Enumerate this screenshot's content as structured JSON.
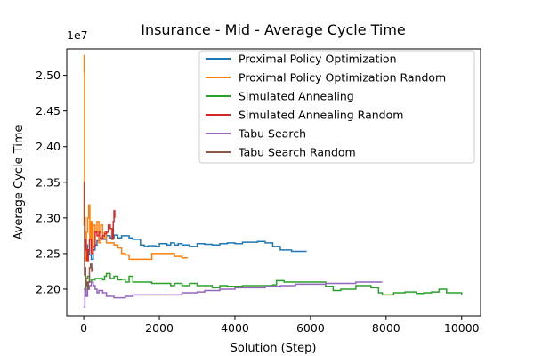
{
  "chart_data": {
    "type": "line",
    "title": "Insurance - Mid - Average Cycle Time",
    "xlabel": "Solution (Step)",
    "ylabel": "Average Cycle Time",
    "y_offset_label": "1e7",
    "xlim": [
      -450,
      10500
    ],
    "ylim": [
      2.1625,
      2.537
    ],
    "x_ticks": [
      0,
      2000,
      4000,
      6000,
      8000,
      10000
    ],
    "y_ticks": [
      2.2,
      2.25,
      2.3,
      2.35,
      2.4,
      2.45,
      2.5
    ],
    "y_tick_labels": [
      "2.20",
      "2.25",
      "2.30",
      "2.35",
      "2.40",
      "2.45",
      "2.50"
    ],
    "grid": false,
    "legend_position": "top-right",
    "series": [
      {
        "name": "Proximal Policy Optimization",
        "color": "#1f77b4",
        "step": true,
        "points": [
          [
            0,
            2.27
          ],
          [
            50,
            2.262
          ],
          [
            100,
            2.255
          ],
          [
            150,
            2.248
          ],
          [
            200,
            2.242
          ],
          [
            250,
            2.255
          ],
          [
            300,
            2.262
          ],
          [
            350,
            2.268
          ],
          [
            400,
            2.272
          ],
          [
            500,
            2.27
          ],
          [
            600,
            2.275
          ],
          [
            700,
            2.272
          ],
          [
            800,
            2.276
          ],
          [
            900,
            2.272
          ],
          [
            1000,
            2.275
          ],
          [
            1200,
            2.272
          ],
          [
            1300,
            2.27
          ],
          [
            1500,
            2.262
          ],
          [
            1600,
            2.26
          ],
          [
            1700,
            2.261
          ],
          [
            1900,
            2.26
          ],
          [
            2000,
            2.264
          ],
          [
            2200,
            2.262
          ],
          [
            2300,
            2.265
          ],
          [
            2400,
            2.262
          ],
          [
            2500,
            2.264
          ],
          [
            2600,
            2.262
          ],
          [
            2800,
            2.26
          ],
          [
            3000,
            2.264
          ],
          [
            3200,
            2.263
          ],
          [
            3400,
            2.262
          ],
          [
            3600,
            2.264
          ],
          [
            3800,
            2.265
          ],
          [
            4000,
            2.264
          ],
          [
            4200,
            2.266
          ],
          [
            4400,
            2.266
          ],
          [
            4600,
            2.267
          ],
          [
            4800,
            2.265
          ],
          [
            5000,
            2.26
          ],
          [
            5200,
            2.255
          ],
          [
            5500,
            2.253
          ],
          [
            5900,
            2.253
          ]
        ]
      },
      {
        "name": "Proximal Policy Optimization Random",
        "color": "#ff7f0e",
        "step": true,
        "points": [
          [
            0,
            2.528
          ],
          [
            10,
            2.505
          ],
          [
            20,
            2.3
          ],
          [
            40,
            2.24
          ],
          [
            70,
            2.28
          ],
          [
            100,
            2.3
          ],
          [
            130,
            2.318
          ],
          [
            160,
            2.27
          ],
          [
            190,
            2.295
          ],
          [
            220,
            2.25
          ],
          [
            250,
            2.29
          ],
          [
            300,
            2.28
          ],
          [
            350,
            2.295
          ],
          [
            400,
            2.265
          ],
          [
            450,
            2.29
          ],
          [
            500,
            2.272
          ],
          [
            550,
            2.28
          ],
          [
            600,
            2.265
          ],
          [
            700,
            2.265
          ],
          [
            800,
            2.262
          ],
          [
            900,
            2.258
          ],
          [
            1000,
            2.25
          ],
          [
            1100,
            2.248
          ],
          [
            1200,
            2.242
          ],
          [
            1400,
            2.242
          ],
          [
            1600,
            2.242
          ],
          [
            1800,
            2.25
          ],
          [
            2000,
            2.25
          ],
          [
            2200,
            2.25
          ],
          [
            2400,
            2.246
          ],
          [
            2600,
            2.244
          ],
          [
            2750,
            2.244
          ]
        ]
      },
      {
        "name": "Simulated Annealing",
        "color": "#2ca02c",
        "step": true,
        "points": [
          [
            0,
            2.2
          ],
          [
            50,
            2.215
          ],
          [
            100,
            2.218
          ],
          [
            150,
            2.21
          ],
          [
            200,
            2.213
          ],
          [
            300,
            2.215
          ],
          [
            400,
            2.215
          ],
          [
            500,
            2.213
          ],
          [
            550,
            2.218
          ],
          [
            600,
            2.222
          ],
          [
            700,
            2.215
          ],
          [
            800,
            2.218
          ],
          [
            900,
            2.213
          ],
          [
            1000,
            2.214
          ],
          [
            1100,
            2.21
          ],
          [
            1200,
            2.218
          ],
          [
            1300,
            2.21
          ],
          [
            1500,
            2.21
          ],
          [
            1800,
            2.208
          ],
          [
            2000,
            2.208
          ],
          [
            2200,
            2.208
          ],
          [
            2300,
            2.205
          ],
          [
            2400,
            2.208
          ],
          [
            2600,
            2.205
          ],
          [
            2800,
            2.208
          ],
          [
            3000,
            2.205
          ],
          [
            3200,
            2.205
          ],
          [
            3400,
            2.202
          ],
          [
            3600,
            2.205
          ],
          [
            3800,
            2.204
          ],
          [
            4000,
            2.204
          ],
          [
            4200,
            2.205
          ],
          [
            4600,
            2.205
          ],
          [
            4800,
            2.205
          ],
          [
            5000,
            2.206
          ],
          [
            5100,
            2.212
          ],
          [
            5300,
            2.21
          ],
          [
            6000,
            2.21
          ],
          [
            6200,
            2.21
          ],
          [
            6400,
            2.204
          ],
          [
            6600,
            2.198
          ],
          [
            6800,
            2.2
          ],
          [
            7000,
            2.2
          ],
          [
            7200,
            2.205
          ],
          [
            7400,
            2.205
          ],
          [
            7600,
            2.202
          ],
          [
            7800,
            2.195
          ],
          [
            7900,
            2.192
          ],
          [
            8200,
            2.195
          ],
          [
            8500,
            2.196
          ],
          [
            8800,
            2.194
          ],
          [
            9000,
            2.195
          ],
          [
            9200,
            2.196
          ],
          [
            9400,
            2.2
          ],
          [
            9600,
            2.195
          ],
          [
            9800,
            2.195
          ],
          [
            10000,
            2.192
          ]
        ]
      },
      {
        "name": "Simulated Annealing Random",
        "color": "#d62728",
        "step": true,
        "points": [
          [
            0,
            2.242
          ],
          [
            30,
            2.27
          ],
          [
            60,
            2.255
          ],
          [
            90,
            2.24
          ],
          [
            120,
            2.255
          ],
          [
            150,
            2.27
          ],
          [
            200,
            2.25
          ],
          [
            250,
            2.26
          ],
          [
            300,
            2.28
          ],
          [
            350,
            2.275
          ],
          [
            400,
            2.28
          ],
          [
            450,
            2.27
          ],
          [
            500,
            2.275
          ],
          [
            550,
            2.278
          ],
          [
            600,
            2.28
          ],
          [
            650,
            2.29
          ],
          [
            700,
            2.285
          ],
          [
            750,
            2.27
          ],
          [
            780,
            2.295
          ],
          [
            800,
            2.31
          ],
          [
            820,
            2.3
          ]
        ]
      },
      {
        "name": "Tabu Search",
        "color": "#9467bd",
        "step": true,
        "points": [
          [
            0,
            2.175
          ],
          [
            30,
            2.2
          ],
          [
            60,
            2.19
          ],
          [
            100,
            2.2
          ],
          [
            150,
            2.205
          ],
          [
            200,
            2.21
          ],
          [
            250,
            2.205
          ],
          [
            300,
            2.2
          ],
          [
            350,
            2.195
          ],
          [
            400,
            2.198
          ],
          [
            500,
            2.195
          ],
          [
            600,
            2.19
          ],
          [
            800,
            2.188
          ],
          [
            1000,
            2.188
          ],
          [
            1100,
            2.19
          ],
          [
            1300,
            2.192
          ],
          [
            1600,
            2.192
          ],
          [
            2000,
            2.192
          ],
          [
            2400,
            2.192
          ],
          [
            2600,
            2.195
          ],
          [
            3000,
            2.196
          ],
          [
            3200,
            2.198
          ],
          [
            3400,
            2.198
          ],
          [
            3600,
            2.2
          ],
          [
            4000,
            2.202
          ],
          [
            4400,
            2.202
          ],
          [
            4800,
            2.204
          ],
          [
            5200,
            2.205
          ],
          [
            5600,
            2.207
          ],
          [
            6000,
            2.207
          ],
          [
            6400,
            2.208
          ],
          [
            6800,
            2.208
          ],
          [
            7200,
            2.21
          ],
          [
            7600,
            2.21
          ],
          [
            7900,
            2.21
          ]
        ]
      },
      {
        "name": "Tabu Search Random",
        "color": "#8c564b",
        "step": true,
        "points": [
          [
            0,
            2.35
          ],
          [
            10,
            2.29
          ],
          [
            20,
            2.22
          ],
          [
            35,
            2.23
          ],
          [
            50,
            2.215
          ],
          [
            65,
            2.205
          ],
          [
            80,
            2.21
          ],
          [
            100,
            2.2
          ],
          [
            120,
            2.21
          ],
          [
            150,
            2.23
          ],
          [
            180,
            2.235
          ],
          [
            210,
            2.225
          ],
          [
            240,
            2.23
          ]
        ]
      }
    ]
  }
}
